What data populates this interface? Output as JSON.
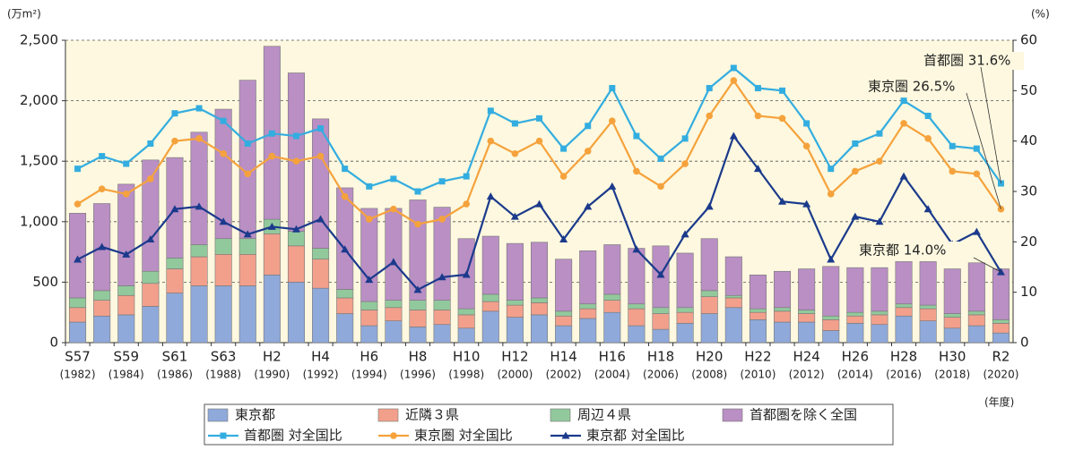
{
  "chart_data": {
    "type": "bar",
    "y_label": "(万m²)",
    "y2_label": "(%)",
    "x_unit_label": "(年度)",
    "categories": [
      "S57",
      null,
      "S59",
      null,
      "S61",
      null,
      "S63",
      null,
      "H2",
      null,
      "H4",
      null,
      "H6",
      null,
      "H8",
      null,
      "H10",
      null,
      "H12",
      null,
      "H14",
      null,
      "H16",
      null,
      "H18",
      null,
      "H20",
      null,
      "H22",
      null,
      "H24",
      null,
      "H26",
      null,
      "H28",
      null,
      "H30",
      null,
      "R2"
    ],
    "category_years": [
      "(1982)",
      null,
      "(1984)",
      null,
      "(1986)",
      null,
      "(1988)",
      null,
      "(1990)",
      null,
      "(1992)",
      null,
      "(1994)",
      null,
      "(1996)",
      null,
      "(1998)",
      null,
      "(2000)",
      null,
      "(2002)",
      null,
      "(2004)",
      null,
      "(2006)",
      null,
      "(2008)",
      null,
      "(2010)",
      null,
      "(2012)",
      null,
      "(2014)",
      null,
      "(2016)",
      null,
      "(2018)",
      null,
      "(2020)"
    ],
    "series": [
      {
        "name": "東京都",
        "color": "#8fa9da",
        "values": [
          170,
          220,
          230,
          300,
          410,
          470,
          470,
          470,
          560,
          500,
          450,
          240,
          140,
          180,
          130,
          150,
          120,
          260,
          210,
          230,
          140,
          200,
          250,
          140,
          110,
          160,
          240,
          290,
          190,
          170,
          170,
          100,
          160,
          150,
          220,
          180,
          120,
          140,
          80
        ]
      },
      {
        "name": "近隣３県",
        "color": "#f2a08c",
        "values": [
          120,
          130,
          160,
          190,
          200,
          240,
          260,
          260,
          340,
          300,
          240,
          130,
          130,
          110,
          140,
          120,
          110,
          80,
          100,
          100,
          80,
          80,
          100,
          140,
          130,
          90,
          140,
          80,
          60,
          90,
          70,
          90,
          60,
          80,
          70,
          100,
          90,
          90,
          80
        ]
      },
      {
        "name": "周辺４県",
        "color": "#92c99c",
        "values": [
          80,
          80,
          80,
          100,
          90,
          100,
          130,
          130,
          120,
          120,
          90,
          70,
          70,
          60,
          80,
          80,
          50,
          60,
          40,
          40,
          40,
          40,
          50,
          40,
          50,
          40,
          50,
          20,
          30,
          30,
          30,
          30,
          30,
          30,
          30,
          30,
          30,
          30,
          30
        ]
      },
      {
        "name": "首都圏を除く全国",
        "color": "#b98fc4",
        "values": [
          700,
          720,
          840,
          920,
          830,
          930,
          1070,
          1310,
          1430,
          1310,
          1070,
          840,
          770,
          760,
          830,
          770,
          580,
          480,
          470,
          460,
          430,
          440,
          410,
          460,
          510,
          450,
          430,
          320,
          280,
          300,
          340,
          410,
          370,
          360,
          350,
          360,
          370,
          400,
          420
        ]
      },
      {
        "name": "首都圏 対全国比",
        "color": "#33ade0",
        "axis": "y2",
        "kind": "line",
        "marker": "square",
        "values": [
          34.5,
          37,
          35.5,
          39.5,
          45.5,
          46.5,
          44,
          39.5,
          41.5,
          41,
          42.5,
          34.5,
          31,
          32.5,
          30,
          32,
          33,
          46,
          43.5,
          44.5,
          38.5,
          43,
          50.5,
          41,
          36.5,
          40.5,
          50.5,
          54.5,
          50.5,
          50,
          43.5,
          34.5,
          39.5,
          41.5,
          48,
          45,
          39,
          38.5,
          31.6
        ]
      },
      {
        "name": "東京圏 対全国比",
        "color": "#f5a23c",
        "axis": "y2",
        "kind": "line",
        "marker": "circle",
        "values": [
          27.5,
          30.5,
          29.5,
          32.5,
          40,
          40.5,
          37.5,
          33.5,
          37,
          36,
          37,
          29,
          24.5,
          26.5,
          23.5,
          24.5,
          27.5,
          40,
          37.5,
          40,
          33,
          38,
          44,
          34,
          31,
          35.5,
          45,
          52,
          45,
          44.5,
          39,
          29.5,
          34,
          36,
          43.5,
          40.5,
          34,
          33.5,
          26.5
        ]
      },
      {
        "name": "東京都 対全国比",
        "color": "#1b3a8c",
        "axis": "y2",
        "kind": "line",
        "marker": "triangle",
        "values": [
          16.5,
          19,
          17.5,
          20.5,
          26.5,
          27,
          24,
          21.5,
          23,
          22.5,
          24.5,
          18.5,
          12.5,
          16,
          10.5,
          13,
          13.5,
          29,
          25,
          27.5,
          20.5,
          27,
          31,
          18.5,
          13.5,
          21.5,
          27,
          41,
          34.5,
          28,
          27.5,
          16.5,
          25,
          24,
          33,
          26.5,
          19.5,
          22,
          14.0
        ]
      }
    ],
    "annotations": [
      "首都圏 31.6%",
      "東京圏 26.5%",
      "東京都 14.0%"
    ],
    "ylim": [
      0,
      2500
    ],
    "yticks": [
      0,
      500,
      {
        "value": 1000,
        "label": "1,000"
      },
      {
        "value": 1500,
        "label": "1,500"
      },
      {
        "value": 2000,
        "label": "2,000"
      },
      {
        "value": 2500,
        "label": "2,500"
      }
    ],
    "y2lim": [
      0,
      60
    ],
    "y2ticks": [
      0,
      10,
      20,
      30,
      40,
      50,
      60
    ],
    "grid": true,
    "background": "#fdf8df"
  }
}
